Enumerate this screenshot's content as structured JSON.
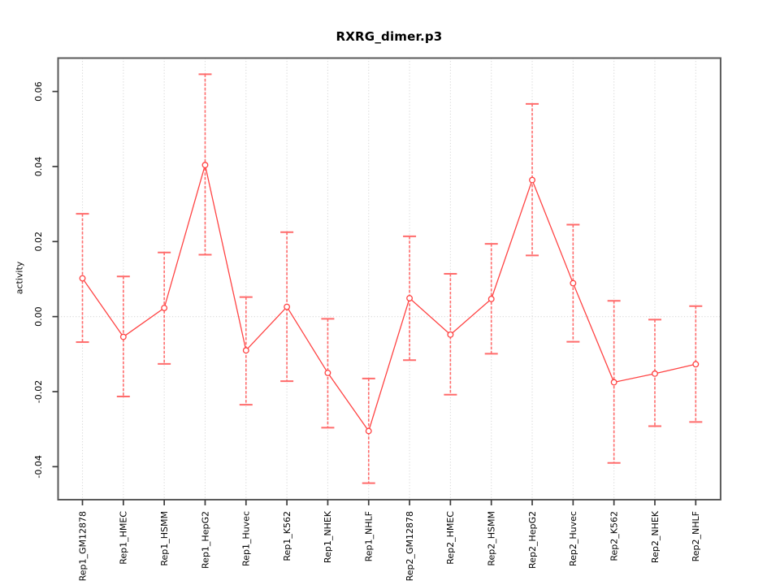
{
  "figure": {
    "title": "RXRG_dimer.p3",
    "y_axis_label": "activity"
  },
  "chart_data": {
    "type": "line",
    "title": "RXRG_dimer.p3",
    "xlabel": "",
    "ylabel": "activity",
    "ylim": [
      -0.0488,
      0.0689
    ],
    "ytick_labels": [
      "-0.04",
      "-0.02",
      "0.00",
      "0.02",
      "0.04",
      "0.06"
    ],
    "grid": {
      "vertical_dotted_at_each_category": true,
      "horizontal_dotted_zero_line": true,
      "other_horizontal_gridlines": false
    },
    "legend": "none",
    "marker": "open-circle",
    "categories": [
      "Rep1_GM12878",
      "Rep1_HMEC",
      "Rep1_HSMM",
      "Rep1_HepG2",
      "Rep1_Huvec",
      "Rep1_K562",
      "Rep1_NHEK",
      "Rep1_NHLF",
      "Rep2_GM12878",
      "Rep2_HMEC",
      "Rep2_HSMM",
      "Rep2_HepG2",
      "Rep2_Huvec",
      "Rep2_K562",
      "Rep2_NHEK",
      "Rep2_NHLF"
    ],
    "series": [
      {
        "name": "activity",
        "style": "line-with-error-bars",
        "means": [
          0.0102,
          -0.0054,
          0.0023,
          0.0404,
          -0.009,
          0.0026,
          -0.015,
          -0.0305,
          0.0049,
          -0.0048,
          0.0047,
          0.0364,
          0.0089,
          -0.0175,
          -0.0152,
          -0.0127
        ],
        "upper": [
          0.0274,
          0.0107,
          0.0171,
          0.0646,
          0.0052,
          0.0225,
          -0.0006,
          -0.0165,
          0.0214,
          0.0114,
          0.0194,
          0.0567,
          0.0245,
          0.0042,
          -0.0008,
          0.0028
        ],
        "lower": [
          -0.0068,
          -0.0213,
          -0.0126,
          0.0165,
          -0.0235,
          -0.0172,
          -0.0296,
          -0.0444,
          -0.0116,
          -0.0208,
          -0.0099,
          0.0163,
          -0.0067,
          -0.039,
          -0.0292,
          -0.0281
        ]
      }
    ],
    "colors": {
      "series_line": "#ff4343",
      "error_bar": "#ff6b6b",
      "point_fill": "#ffffff",
      "grid": "#d8d8d8",
      "box": "#5a5a5a",
      "tick": "#3c3c3c",
      "text": "#000000",
      "background": "#ffffff"
    }
  }
}
